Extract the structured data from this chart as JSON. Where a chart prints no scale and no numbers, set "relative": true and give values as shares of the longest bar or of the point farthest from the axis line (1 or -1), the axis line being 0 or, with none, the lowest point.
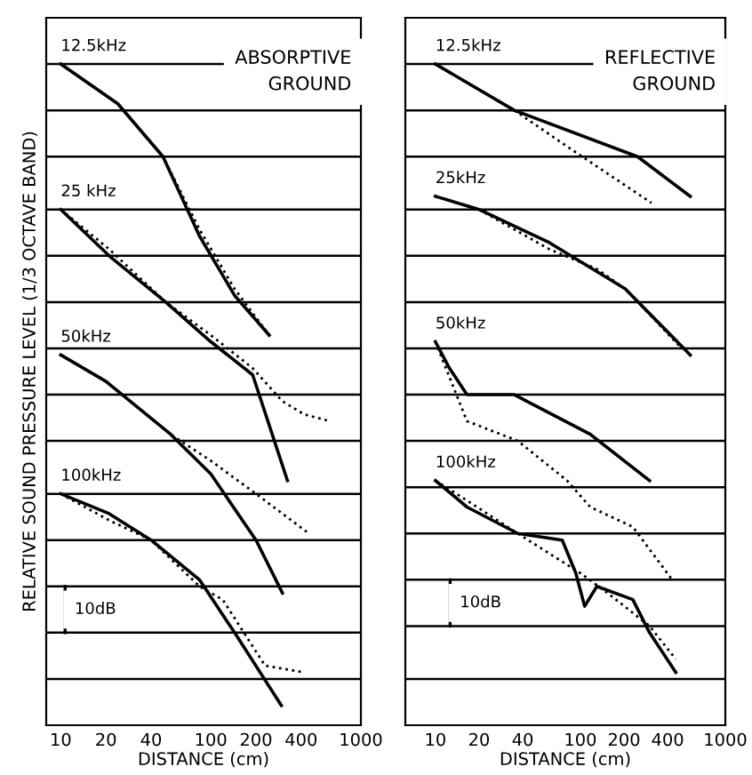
{
  "chart_data": [
    {
      "type": "line",
      "relative": true,
      "log": "x",
      "xlim": [
        8,
        1000
      ],
      "xticks": [
        10,
        20,
        40,
        100,
        200,
        400,
        1000
      ],
      "xlabel": "DISTANCE (cm)",
      "ylabel": "RELATIVE SOUND PRESSURE LEVEL (1/3 OCTAVE BAND)",
      "legend": false,
      "marker": "none",
      "grid": false,
      "annotations": [
        "ABSORPTIVE\nGROUND",
        "10dB"
      ],
      "ref_lines": [
        {
          "axis": "y",
          "value": 1.0,
          "color": "#000000"
        },
        {
          "axis": "y",
          "value": 0.93,
          "color": "#000000"
        },
        {
          "axis": "y",
          "value": 0.86,
          "color": "#000000"
        },
        {
          "axis": "y",
          "value": 0.78,
          "color": "#000000"
        },
        {
          "axis": "y",
          "value": 0.71,
          "color": "#000000"
        },
        {
          "axis": "y",
          "value": 0.64,
          "color": "#000000"
        },
        {
          "axis": "y",
          "value": 0.57,
          "color": "#000000"
        },
        {
          "axis": "y",
          "value": 0.5,
          "color": "#000000"
        },
        {
          "axis": "y",
          "value": 0.43,
          "color": "#000000"
        },
        {
          "axis": "y",
          "value": 0.35,
          "color": "#000000"
        },
        {
          "axis": "y",
          "value": 0.28,
          "color": "#000000"
        },
        {
          "axis": "y",
          "value": 0.21,
          "color": "#000000"
        },
        {
          "axis": "y",
          "value": 0.14,
          "color": "#000000"
        },
        {
          "axis": "y",
          "value": 0.07,
          "color": "#000000"
        }
      ],
      "series": [
        {
          "name": "12.5kHz",
          "color": "#000000",
          "line_style": "solid",
          "x": [
            10,
            24,
            48,
            84,
            144,
            245
          ],
          "values": [
            1.0,
            0.94,
            0.86,
            0.74,
            0.65,
            0.59
          ]
        },
        {
          "color": "#000000",
          "line_style": "dotted",
          "x": [
            10,
            24,
            48,
            84,
            144,
            245
          ],
          "values": [
            1.0,
            0.94,
            0.86,
            0.75,
            0.66,
            0.59
          ]
        },
        {
          "name": "25 kHz",
          "color": "#000000",
          "line_style": "solid",
          "x": [
            10,
            21,
            50,
            100,
            190,
            324
          ],
          "values": [
            0.78,
            0.71,
            0.64,
            0.58,
            0.53,
            0.37
          ]
        },
        {
          "color": "#000000",
          "line_style": "dotted",
          "x": [
            10,
            21,
            50,
            100,
            190,
            300,
            420,
            620
          ],
          "values": [
            0.78,
            0.72,
            0.64,
            0.59,
            0.54,
            0.49,
            0.47,
            0.46
          ]
        },
        {
          "name": "50kHz",
          "color": "#000000",
          "line_style": "solid",
          "x": [
            10,
            20,
            54,
            100,
            200,
            300
          ],
          "values": [
            0.56,
            0.52,
            0.44,
            0.38,
            0.28,
            0.2
          ]
        },
        {
          "color": "#000000",
          "line_style": "dotted",
          "x": [
            10,
            20,
            54,
            100,
            200,
            450
          ],
          "values": [
            0.56,
            0.52,
            0.44,
            0.4,
            0.35,
            0.29
          ]
        },
        {
          "name": "100kHz",
          "color": "#000000",
          "line_style": "solid",
          "x": [
            10,
            21,
            40,
            84,
            144,
            295
          ],
          "values": [
            0.35,
            0.32,
            0.28,
            0.22,
            0.14,
            0.03
          ]
        },
        {
          "color": "#000000",
          "line_style": "dotted",
          "x": [
            10,
            21,
            40,
            84,
            120,
            230,
            420
          ],
          "values": [
            0.35,
            0.31,
            0.28,
            0.21,
            0.19,
            0.09,
            0.08
          ]
        }
      ]
    },
    {
      "type": "line",
      "relative": true,
      "log": "x",
      "xlim": [
        6.2,
        1000
      ],
      "xticks": [
        10,
        20,
        40,
        100,
        200,
        400,
        1000
      ],
      "xlabel": "DISTANCE (cm)",
      "legend": false,
      "marker": "none",
      "grid": false,
      "annotations": [
        "REFLECTIVE\nGROUND",
        "10dB"
      ],
      "ref_lines": [
        {
          "axis": "y",
          "value": 1.0,
          "color": "#000000"
        },
        {
          "axis": "y",
          "value": 0.93,
          "color": "#000000"
        },
        {
          "axis": "y",
          "value": 0.86,
          "color": "#000000"
        },
        {
          "axis": "y",
          "value": 0.78,
          "color": "#000000"
        },
        {
          "axis": "y",
          "value": 0.71,
          "color": "#000000"
        },
        {
          "axis": "y",
          "value": 0.64,
          "color": "#000000"
        },
        {
          "axis": "y",
          "value": 0.57,
          "color": "#000000"
        },
        {
          "axis": "y",
          "value": 0.5,
          "color": "#000000"
        },
        {
          "axis": "y",
          "value": 0.43,
          "color": "#000000"
        },
        {
          "axis": "y",
          "value": 0.36,
          "color": "#000000"
        },
        {
          "axis": "y",
          "value": 0.29,
          "color": "#000000"
        },
        {
          "axis": "y",
          "value": 0.22,
          "color": "#000000"
        },
        {
          "axis": "y",
          "value": 0.15,
          "color": "#000000"
        },
        {
          "axis": "y",
          "value": 0.07,
          "color": "#000000"
        }
      ],
      "series": [
        {
          "name": "12.5kHz",
          "color": "#000000",
          "line_style": "solid",
          "x": [
            10,
            35,
            248,
            573
          ],
          "values": [
            1.0,
            0.93,
            0.86,
            0.8
          ]
        },
        {
          "color": "#000000",
          "line_style": "dotted",
          "x": [
            10,
            35,
            88,
            309
          ],
          "values": [
            1.0,
            0.93,
            0.87,
            0.79
          ]
        },
        {
          "name": "25kHz",
          "color": "#000000",
          "line_style": "solid",
          "x": [
            10,
            20,
            61,
            204,
            573
          ],
          "values": [
            0.8,
            0.78,
            0.73,
            0.66,
            0.56
          ]
        },
        {
          "color": "#000000",
          "line_style": "dotted",
          "x": [
            10,
            20,
            61,
            130,
            204,
            500
          ],
          "values": [
            0.8,
            0.78,
            0.72,
            0.69,
            0.66,
            0.57
          ]
        },
        {
          "name": "50kHz",
          "color": "#000000",
          "line_style": "solid",
          "x": [
            10,
            12.5,
            16.5,
            35,
            117,
            300
          ],
          "values": [
            0.58,
            0.54,
            0.5,
            0.5,
            0.44,
            0.37
          ]
        },
        {
          "color": "#000000",
          "line_style": "dotted",
          "x": [
            10,
            16.5,
            37,
            81,
            117,
            230,
            430
          ],
          "values": [
            0.58,
            0.46,
            0.43,
            0.37,
            0.33,
            0.3,
            0.22
          ]
        },
        {
          "name": "100kHz",
          "color": "#000000",
          "line_style": "solid",
          "x": [
            10,
            16.5,
            37,
            75,
            93,
            107,
            130,
            230,
            300,
            455
          ],
          "values": [
            0.37,
            0.33,
            0.29,
            0.28,
            0.23,
            0.18,
            0.21,
            0.19,
            0.14,
            0.08
          ]
        },
        {
          "color": "#000000",
          "line_style": "dotted",
          "x": [
            10,
            16.5,
            37,
            100,
            154,
            300,
            455
          ],
          "values": [
            0.37,
            0.34,
            0.29,
            0.23,
            0.2,
            0.15,
            0.1
          ]
        }
      ]
    }
  ]
}
